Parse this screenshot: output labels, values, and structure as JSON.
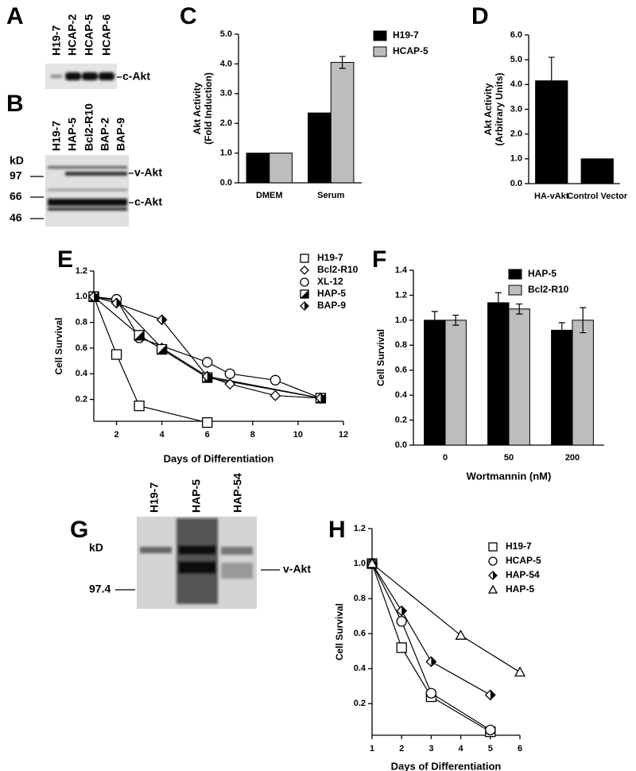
{
  "blots": [
    {
      "panel": "A",
      "lanes": [
        "H19-7",
        "HCAP-2",
        "HCAP-5",
        "HCAP-6"
      ],
      "bands": [
        "c-Akt"
      ]
    },
    {
      "panel": "B",
      "lanes": [
        "H19-7",
        "HAP-5",
        "Bcl2-R10",
        "BAP-2",
        "BAP-9"
      ],
      "unit": "kD",
      "markers": [
        97,
        66,
        46
      ],
      "bands": [
        "v-Akt",
        "c-Akt"
      ]
    },
    {
      "panel": "G",
      "lanes": [
        "H19-7",
        "HAP-5",
        "HAP-54"
      ],
      "unit": "kD",
      "markers": [
        97.4
      ],
      "bands": [
        "v-Akt"
      ]
    }
  ],
  "chart_data": [
    {
      "panel": "C",
      "type": "bar",
      "ylabel": [
        "Akt Activity",
        "(Fold Induction)"
      ],
      "categories": [
        "DMEM",
        "Serum"
      ],
      "series": [
        {
          "name": "H19-7",
          "color": "#000000",
          "values": [
            1.0,
            2.35
          ],
          "errors": [
            null,
            null
          ]
        },
        {
          "name": "HCAP-5",
          "color": "#bdbdbd",
          "values": [
            1.0,
            4.05
          ],
          "errors": [
            null,
            0.2
          ]
        }
      ],
      "ylim": [
        0,
        5
      ],
      "yticks": [
        {
          "value": 0,
          "label": "0.0"
        },
        {
          "value": 1,
          "label": "1.0"
        },
        {
          "value": 2,
          "label": "2.0"
        },
        {
          "value": 3,
          "label": "3.0"
        },
        {
          "value": 4,
          "label": "4.0"
        },
        {
          "value": 5,
          "label": "5.0"
        }
      ]
    },
    {
      "panel": "D",
      "type": "bar",
      "ylabel": [
        "Akt Activity",
        "(Arbitrary Units)"
      ],
      "categories": [
        "HA-vAkt",
        "Control Vector"
      ],
      "series": [
        {
          "color": "#000000",
          "values": [
            4.15,
            1.0
          ],
          "errors": [
            0.95,
            null
          ]
        }
      ],
      "ylim": [
        0,
        6
      ],
      "yticks": [
        {
          "value": 0,
          "label": "0.0"
        },
        {
          "value": 1,
          "label": "1.0"
        },
        {
          "value": 2,
          "label": "2.0"
        },
        {
          "value": 3,
          "label": "3.0"
        },
        {
          "value": 4,
          "label": "4.0"
        },
        {
          "value": 5,
          "label": "5.0"
        },
        {
          "value": 6,
          "label": "6.0"
        }
      ]
    },
    {
      "panel": "E",
      "type": "line",
      "xlabel": "Days of Differentiation",
      "ylabel": [
        "Cell Survival"
      ],
      "series": [
        {
          "name": "H19-7",
          "marker": "square",
          "x": [
            1,
            2,
            3,
            6
          ],
          "values": [
            1.0,
            0.55,
            0.15,
            0.02
          ]
        },
        {
          "name": "Bcl2-R10",
          "marker": "diamond",
          "x": [
            1,
            2,
            4,
            6,
            7,
            9,
            11
          ],
          "values": [
            1.0,
            0.97,
            0.6,
            0.38,
            0.32,
            0.23,
            0.21
          ]
        },
        {
          "name": "XL-12",
          "marker": "circle",
          "x": [
            1,
            2,
            3,
            6,
            7,
            9,
            11
          ],
          "values": [
            1.0,
            0.98,
            0.68,
            0.49,
            0.4,
            0.35,
            0.21
          ]
        },
        {
          "name": "HAP-5",
          "marker": "half-square",
          "x": [
            1,
            3,
            4,
            6,
            11
          ],
          "values": [
            1.0,
            0.7,
            0.59,
            0.37,
            0.21
          ]
        },
        {
          "name": "BAP-9",
          "marker": "half-diamond",
          "x": [
            1,
            2,
            4,
            6,
            11
          ],
          "values": [
            1.0,
            0.95,
            0.82,
            0.38,
            0.21
          ]
        }
      ],
      "xlim": [
        1,
        12
      ],
      "xticks": [
        2,
        4,
        6,
        8,
        10,
        12
      ],
      "ylim": [
        0.03,
        1.2
      ],
      "yticks": [
        0.2,
        0.4,
        0.6,
        0.8,
        {
          "value": 1,
          "label": "1.0"
        },
        1.2
      ]
    },
    {
      "panel": "F",
      "type": "bar",
      "xlabel": "Wortmannin  (nM)",
      "ylabel": [
        "Cell  Survival"
      ],
      "categories": [
        "0",
        "50",
        "200"
      ],
      "series": [
        {
          "name": "HAP-5",
          "color": "#000000",
          "values": [
            1.0,
            1.14,
            0.92
          ],
          "errors": [
            0.07,
            0.08,
            0.06
          ]
        },
        {
          "name": "Bcl2-R10",
          "color": "#bdbdbd",
          "values": [
            1.0,
            1.09,
            1.0
          ],
          "errors": [
            0.04,
            0.04,
            0.1
          ]
        }
      ],
      "ylim": [
        0,
        1.4
      ],
      "yticks": [
        {
          "value": 0,
          "label": "0.0"
        },
        0.2,
        0.4,
        0.6,
        0.8,
        {
          "value": 1,
          "label": "1.0"
        },
        1.2,
        1.4
      ]
    },
    {
      "panel": "H",
      "type": "line",
      "xlabel": "Days  of  Differentiation",
      "ylabel": [
        "Cell  Survival"
      ],
      "series": [
        {
          "name": "H19-7",
          "marker": "square",
          "x": [
            1,
            2,
            3,
            5
          ],
          "values": [
            1.0,
            0.52,
            0.24,
            0.04
          ]
        },
        {
          "name": "HCAP-5",
          "marker": "circle",
          "x": [
            1,
            2,
            3,
            5
          ],
          "values": [
            1.0,
            0.67,
            0.26,
            0.05
          ]
        },
        {
          "name": "HAP-54",
          "marker": "half-diamond",
          "x": [
            1,
            2,
            3,
            5
          ],
          "values": [
            1.0,
            0.73,
            0.44,
            0.25
          ]
        },
        {
          "name": "HAP-5",
          "marker": "triangle",
          "x": [
            1,
            4,
            6
          ],
          "values": [
            1.0,
            0.59,
            0.38
          ]
        }
      ],
      "xlim": [
        1,
        6
      ],
      "xticks": [
        1,
        2,
        3,
        4,
        5,
        6
      ],
      "ylim": [
        0.02,
        1.2
      ],
      "yticks": [
        0.2,
        0.4,
        0.6,
        0.8,
        {
          "value": 1,
          "label": "1.0"
        },
        1.2
      ]
    }
  ]
}
